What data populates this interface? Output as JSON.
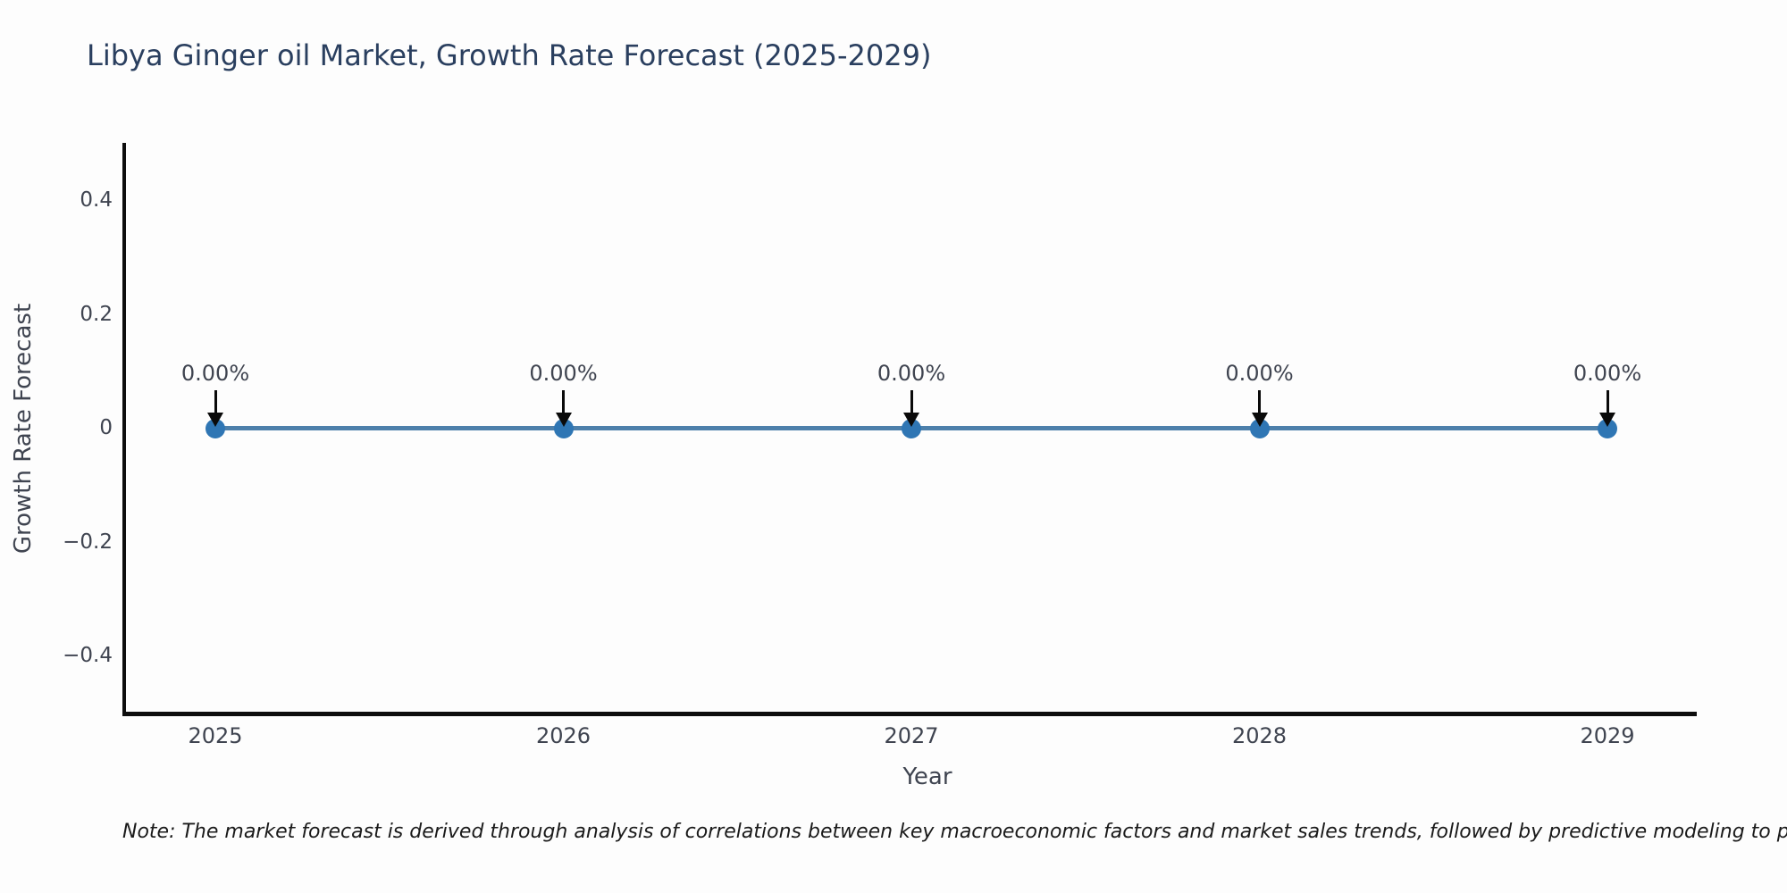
{
  "title": "Libya Ginger oil Market, Growth Rate Forecast (2025-2029)",
  "footnote": "Note: The market forecast is derived through analysis of correlations between key macroeconomic factors and market sales trends, followed by predictive modeling to project future sales",
  "colors": {
    "line": "#4d80ab",
    "marker": "#2f76b4",
    "axis": "#0d0d0d",
    "arrow": "#0a0a0a",
    "title_text": "#2a3f5f",
    "tick_text": "#3f4450",
    "note_text": "#1a1a1a",
    "background": "#fdfdfd"
  },
  "chart_data": {
    "type": "line",
    "title": "Libya Ginger oil Market, Growth Rate Forecast (2025-2029)",
    "xlabel": "Year",
    "ylabel": "Growth Rate Forecast",
    "x": [
      2025,
      2026,
      2027,
      2028,
      2029
    ],
    "values": [
      0,
      0,
      0,
      0,
      0
    ],
    "point_labels": [
      "0.00%",
      "0.00%",
      "0.00%",
      "0.00%",
      "0.00%"
    ],
    "xtick_labels": [
      "2025",
      "2026",
      "2027",
      "2028",
      "2029"
    ],
    "ytick_values": [
      -0.4,
      -0.2,
      0,
      0.2,
      0.4
    ],
    "ytick_labels": [
      "−0.4",
      "−0.2",
      "0",
      "0.2",
      "0.4"
    ],
    "ylim": [
      -0.5,
      0.5
    ],
    "grid": false,
    "legend": null,
    "annotation_style": "down-arrow-to-point"
  }
}
